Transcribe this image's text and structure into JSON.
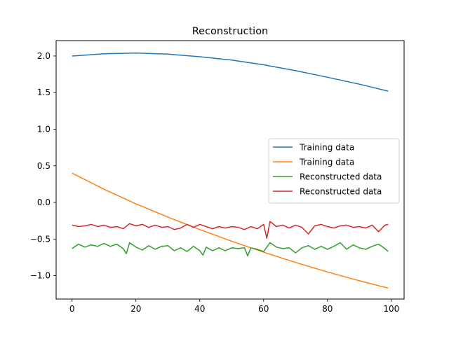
{
  "chart_data": {
    "type": "line",
    "title": "Reconstruction",
    "xlabel": "",
    "ylabel": "",
    "xlim": [
      -5,
      104
    ],
    "ylim": [
      -1.32,
      2.21
    ],
    "x_ticks": [
      0,
      20,
      40,
      60,
      80,
      100
    ],
    "y_ticks": [
      2.0,
      1.5,
      1.0,
      0.5,
      0.0,
      -0.5,
      -1.0
    ],
    "y_tick_labels": [
      "2.0",
      "1.5",
      "1.0",
      "0.5",
      "0.0",
      "−0.5",
      "−1.0"
    ],
    "legend_position": "center-right",
    "grid": false,
    "series": [
      {
        "name": "Training data",
        "color": "#1f77b4",
        "x": [
          0,
          10,
          20,
          30,
          40,
          50,
          60,
          70,
          80,
          90,
          99
        ],
        "y": [
          2.0,
          2.03,
          2.04,
          2.025,
          1.99,
          1.945,
          1.88,
          1.8,
          1.71,
          1.615,
          1.52
        ]
      },
      {
        "name": "Training data",
        "color": "#ff7f0e",
        "x": [
          0,
          10,
          20,
          30,
          40,
          50,
          60,
          70,
          80,
          90,
          99
        ],
        "y": [
          0.4,
          0.18,
          -0.02,
          -0.2,
          -0.37,
          -0.53,
          -0.68,
          -0.82,
          -0.95,
          -1.07,
          -1.17
        ]
      },
      {
        "name": "Reconstructed data",
        "color": "#2ca02c",
        "x": [
          0,
          2,
          4,
          6,
          8,
          10,
          12,
          14,
          16,
          17,
          18,
          20,
          22,
          24,
          26,
          28,
          30,
          32,
          34,
          36,
          38,
          40,
          41,
          42,
          44,
          46,
          48,
          50,
          52,
          54,
          55,
          56,
          58,
          60,
          62,
          64,
          66,
          68,
          70,
          72,
          74,
          76,
          78,
          80,
          82,
          84,
          86,
          88,
          90,
          92,
          94,
          96,
          98,
          99
        ],
        "y": [
          -0.63,
          -0.57,
          -0.61,
          -0.58,
          -0.6,
          -0.56,
          -0.6,
          -0.57,
          -0.63,
          -0.7,
          -0.55,
          -0.61,
          -0.65,
          -0.59,
          -0.64,
          -0.6,
          -0.59,
          -0.66,
          -0.62,
          -0.67,
          -0.6,
          -0.66,
          -0.72,
          -0.61,
          -0.66,
          -0.62,
          -0.66,
          -0.62,
          -0.63,
          -0.62,
          -0.73,
          -0.62,
          -0.64,
          -0.67,
          -0.55,
          -0.61,
          -0.63,
          -0.62,
          -0.69,
          -0.62,
          -0.59,
          -0.64,
          -0.6,
          -0.64,
          -0.6,
          -0.55,
          -0.64,
          -0.58,
          -0.62,
          -0.64,
          -0.6,
          -0.57,
          -0.63,
          -0.67
        ]
      },
      {
        "name": "Reconstructed data",
        "color": "#d62728",
        "x": [
          0,
          2,
          4,
          6,
          8,
          10,
          12,
          14,
          16,
          18,
          20,
          22,
          24,
          26,
          28,
          30,
          32,
          34,
          36,
          38,
          40,
          42,
          44,
          46,
          48,
          50,
          52,
          54,
          56,
          58,
          60,
          61,
          62,
          64,
          66,
          68,
          70,
          72,
          74,
          76,
          78,
          80,
          82,
          84,
          86,
          88,
          90,
          92,
          94,
          96,
          98,
          99
        ],
        "y": [
          -0.31,
          -0.33,
          -0.32,
          -0.3,
          -0.33,
          -0.31,
          -0.34,
          -0.33,
          -0.36,
          -0.29,
          -0.32,
          -0.3,
          -0.34,
          -0.31,
          -0.34,
          -0.33,
          -0.37,
          -0.35,
          -0.3,
          -0.34,
          -0.3,
          -0.33,
          -0.36,
          -0.33,
          -0.35,
          -0.33,
          -0.34,
          -0.37,
          -0.33,
          -0.36,
          -0.3,
          -0.49,
          -0.26,
          -0.33,
          -0.31,
          -0.35,
          -0.31,
          -0.34,
          -0.43,
          -0.32,
          -0.3,
          -0.33,
          -0.35,
          -0.32,
          -0.31,
          -0.34,
          -0.33,
          -0.35,
          -0.31,
          -0.4,
          -0.31,
          -0.3
        ]
      }
    ]
  }
}
